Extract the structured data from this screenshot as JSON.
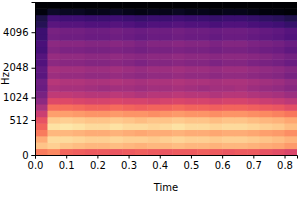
{
  "chart_data": {
    "type": "heatmap",
    "x_label": "Time",
    "y_label": "Hz",
    "color": "magma",
    "xlim": [
      0,
      0.84
    ],
    "ylim": [
      0,
      7000
    ],
    "xticks": [
      {
        "value": 0,
        "label": "0.0"
      },
      {
        "value": 0.1,
        "label": "0.1"
      },
      {
        "value": 0.2,
        "label": "0.2"
      },
      {
        "value": 0.3,
        "label": "0.3"
      },
      {
        "value": 0.4,
        "label": "0.4"
      },
      {
        "value": 0.5,
        "label": "0.5"
      },
      {
        "value": 0.6,
        "label": "0.6"
      },
      {
        "value": 0.7,
        "label": "0.7"
      },
      {
        "value": 0.8,
        "label": "0.8"
      }
    ],
    "yticks": [
      0,
      512,
      1024,
      2048,
      4096
    ],
    "grid": false,
    "x_bins": [
      0,
      0.04,
      0.08,
      0.12,
      0.16,
      0.2,
      0.24,
      0.28,
      0.32,
      0.36,
      0.4,
      0.44,
      0.48,
      0.52,
      0.56,
      0.6,
      0.64,
      0.68,
      0.72,
      0.76,
      0.8,
      0.84
    ],
    "y_bins": [
      0,
      74,
      155,
      245,
      344,
      454,
      575,
      709,
      857,
      1021,
      1202,
      1402,
      1623,
      1867,
      2137,
      2435,
      2765,
      3129,
      3531,
      3976,
      4468,
      5011,
      5611,
      6268,
      7000
    ],
    "zlim": [
      -80,
      0
    ],
    "z": [
      [
        -22,
        -20,
        -26,
        -27,
        -28,
        -28,
        -29,
        -28,
        -27,
        -28,
        -29,
        -28,
        -28,
        -27,
        -28,
        -29,
        -28,
        -28,
        -30,
        -31,
        -33
      ],
      [
        -10,
        -8,
        -10,
        -11,
        -12,
        -12,
        -11,
        -12,
        -13,
        -12,
        -12,
        -11,
        -12,
        -12,
        -13,
        -12,
        -12,
        -13,
        -14,
        -15,
        -17
      ],
      [
        -14,
        -6,
        -6,
        -7,
        -8,
        -8,
        -7,
        -8,
        -8,
        -9,
        -8,
        -7,
        -8,
        -8,
        -9,
        -8,
        -8,
        -9,
        -10,
        -11,
        -13
      ],
      [
        -22,
        -12,
        -12,
        -13,
        -14,
        -14,
        -13,
        -14,
        -15,
        -14,
        -14,
        -13,
        -14,
        -14,
        -15,
        -14,
        -14,
        -15,
        -16,
        -17,
        -19
      ],
      [
        -26,
        -5,
        -4,
        -5,
        -6,
        -6,
        -5,
        -6,
        -6,
        -7,
        -6,
        -5,
        -6,
        -6,
        -7,
        -6,
        -6,
        -7,
        -8,
        -9,
        -11
      ],
      [
        -30,
        -9,
        -8,
        -9,
        -10,
        -10,
        -9,
        -10,
        -11,
        -10,
        -10,
        -9,
        -10,
        -10,
        -11,
        -10,
        -10,
        -11,
        -12,
        -13,
        -15
      ],
      [
        -36,
        -16,
        -16,
        -17,
        -18,
        -18,
        -17,
        -18,
        -18,
        -19,
        -18,
        -17,
        -18,
        -18,
        -19,
        -18,
        -18,
        -19,
        -20,
        -21,
        -23
      ],
      [
        -42,
        -24,
        -24,
        -25,
        -26,
        -26,
        -25,
        -26,
        -27,
        -26,
        -26,
        -25,
        -26,
        -26,
        -27,
        -26,
        -26,
        -27,
        -28,
        -29,
        -31
      ],
      [
        -48,
        -32,
        -32,
        -33,
        -34,
        -34,
        -33,
        -34,
        -34,
        -35,
        -34,
        -33,
        -34,
        -34,
        -35,
        -34,
        -34,
        -35,
        -36,
        -37,
        -39
      ],
      [
        -52,
        -38,
        -38,
        -39,
        -40,
        -40,
        -39,
        -40,
        -41,
        -40,
        -40,
        -39,
        -40,
        -40,
        -41,
        -40,
        -40,
        -41,
        -42,
        -43,
        -45
      ],
      [
        -55,
        -42,
        -43,
        -43,
        -44,
        -45,
        -44,
        -44,
        -45,
        -44,
        -44,
        -43,
        -44,
        -45,
        -44,
        -44,
        -43,
        -45,
        -46,
        -47,
        -49
      ],
      [
        -54,
        -40,
        -41,
        -41,
        -42,
        -42,
        -41,
        -42,
        -43,
        -42,
        -42,
        -41,
        -42,
        -42,
        -43,
        -42,
        -42,
        -43,
        -44,
        -45,
        -47
      ],
      [
        -58,
        -45,
        -46,
        -46,
        -47,
        -47,
        -46,
        -47,
        -48,
        -47,
        -47,
        -46,
        -47,
        -47,
        -48,
        -47,
        -47,
        -48,
        -49,
        -50,
        -52
      ],
      [
        -57,
        -43,
        -44,
        -44,
        -45,
        -45,
        -44,
        -45,
        -46,
        -45,
        -45,
        -44,
        -45,
        -45,
        -46,
        -45,
        -45,
        -46,
        -47,
        -48,
        -50
      ],
      [
        -60,
        -48,
        -49,
        -49,
        -50,
        -50,
        -49,
        -50,
        -51,
        -50,
        -50,
        -49,
        -50,
        -50,
        -51,
        -50,
        -50,
        -51,
        -52,
        -53,
        -55
      ],
      [
        -59,
        -46,
        -47,
        -47,
        -48,
        -48,
        -47,
        -48,
        -49,
        -48,
        -48,
        -47,
        -48,
        -48,
        -49,
        -48,
        -48,
        -49,
        -50,
        -51,
        -53
      ],
      [
        -62,
        -50,
        -51,
        -51,
        -52,
        -52,
        -51,
        -52,
        -53,
        -52,
        -52,
        -51,
        -52,
        -52,
        -53,
        -52,
        -52,
        -53,
        -54,
        -55,
        -57
      ],
      [
        -61,
        -48,
        -49,
        -49,
        -50,
        -50,
        -49,
        -50,
        -51,
        -50,
        -50,
        -49,
        -50,
        -50,
        -51,
        -50,
        -50,
        -51,
        -52,
        -53,
        -55
      ],
      [
        -64,
        -53,
        -54,
        -54,
        -55,
        -55,
        -54,
        -55,
        -56,
        -55,
        -55,
        -54,
        -55,
        -55,
        -56,
        -55,
        -55,
        -56,
        -57,
        -58,
        -60
      ],
      [
        -64,
        -52,
        -53,
        -53,
        -54,
        -54,
        -53,
        -54,
        -55,
        -54,
        -54,
        -53,
        -54,
        -54,
        -55,
        -54,
        -54,
        -55,
        -56,
        -57,
        -59
      ],
      [
        -68,
        -58,
        -59,
        -59,
        -60,
        -60,
        -59,
        -60,
        -61,
        -60,
        -60,
        -59,
        -60,
        -60,
        -61,
        -60,
        -60,
        -61,
        -62,
        -63,
        -65
      ],
      [
        -70,
        -62,
        -63,
        -63,
        -64,
        -64,
        -63,
        -64,
        -65,
        -64,
        -64,
        -63,
        -64,
        -64,
        -65,
        -64,
        -64,
        -65,
        -66,
        -67,
        -69
      ],
      [
        -78,
        -74,
        -75,
        -75,
        -76,
        -76,
        -75,
        -76,
        -77,
        -76,
        -76,
        -75,
        -76,
        -76,
        -77,
        -76,
        -76,
        -77,
        -78,
        -78,
        -79
      ],
      [
        -80,
        -80,
        -80,
        -80,
        -80,
        -80,
        -80,
        -80,
        -80,
        -80,
        -80,
        -80,
        -80,
        -80,
        -80,
        -80,
        -80,
        -80,
        -80,
        -80,
        -80
      ]
    ]
  }
}
